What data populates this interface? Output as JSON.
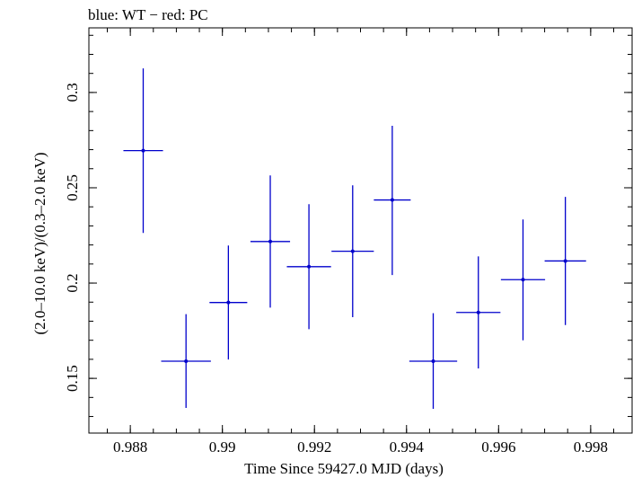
{
  "chart_data": {
    "type": "scatter",
    "title": "blue: WT − red: PC",
    "xlabel": "Time Since 59427.0 MJD (days)",
    "ylabel": "(2.0–10.0 keV)/(0.3–2.0 keV)",
    "xlim": [
      0.9871,
      0.9989
    ],
    "ylim": [
      0.1213,
      0.3339
    ],
    "x_ticks": [
      {
        "value": 0.988,
        "label": "0.988"
      },
      {
        "value": 0.99,
        "label": "0.99"
      },
      {
        "value": 0.992,
        "label": "0.992"
      },
      {
        "value": 0.994,
        "label": "0.994"
      },
      {
        "value": 0.996,
        "label": "0.996"
      },
      {
        "value": 0.998,
        "label": "0.998"
      }
    ],
    "y_ticks": [
      {
        "value": 0.15,
        "label": "0.15"
      },
      {
        "value": 0.2,
        "label": "0.2"
      },
      {
        "value": 0.25,
        "label": "0.25"
      },
      {
        "value": 0.3,
        "label": "0.3"
      }
    ],
    "x_minor_step": 0.0005,
    "y_minor_step": 0.01,
    "grid": false,
    "series": [
      {
        "color": "#0000cc",
        "points": [
          {
            "x": 0.98828,
            "xerr": 0.00043,
            "y": 0.2695,
            "yerr_low": 0.0432,
            "yerr_high": 0.0431
          },
          {
            "x": 0.98921,
            "xerr": 0.00054,
            "y": 0.159,
            "yerr_low": 0.0245,
            "yerr_high": 0.0247
          },
          {
            "x": 0.99013,
            "xerr": 0.00041,
            "y": 0.1898,
            "yerr_low": 0.0299,
            "yerr_high": 0.0299
          },
          {
            "x": 0.99104,
            "xerr": 0.00043,
            "y": 0.2218,
            "yerr_low": 0.0347,
            "yerr_high": 0.0347
          },
          {
            "x": 0.99188,
            "xerr": 0.00048,
            "y": 0.2086,
            "yerr_low": 0.0328,
            "yerr_high": 0.0328
          },
          {
            "x": 0.99283,
            "xerr": 0.00046,
            "y": 0.2167,
            "yerr_low": 0.0346,
            "yerr_high": 0.0346
          },
          {
            "x": 0.99369,
            "xerr": 0.0004,
            "y": 0.2436,
            "yerr_low": 0.0394,
            "yerr_high": 0.0389
          },
          {
            "x": 0.99458,
            "xerr": 0.00052,
            "y": 0.159,
            "yerr_low": 0.025,
            "yerr_high": 0.0252
          },
          {
            "x": 0.99556,
            "xerr": 0.00048,
            "y": 0.1846,
            "yerr_low": 0.0294,
            "yerr_high": 0.0294
          },
          {
            "x": 0.99653,
            "xerr": 0.00048,
            "y": 0.2018,
            "yerr_low": 0.0318,
            "yerr_high": 0.0316
          },
          {
            "x": 0.99745,
            "xerr": 0.00045,
            "y": 0.2116,
            "yerr_low": 0.0336,
            "yerr_high": 0.0336
          }
        ]
      }
    ]
  }
}
